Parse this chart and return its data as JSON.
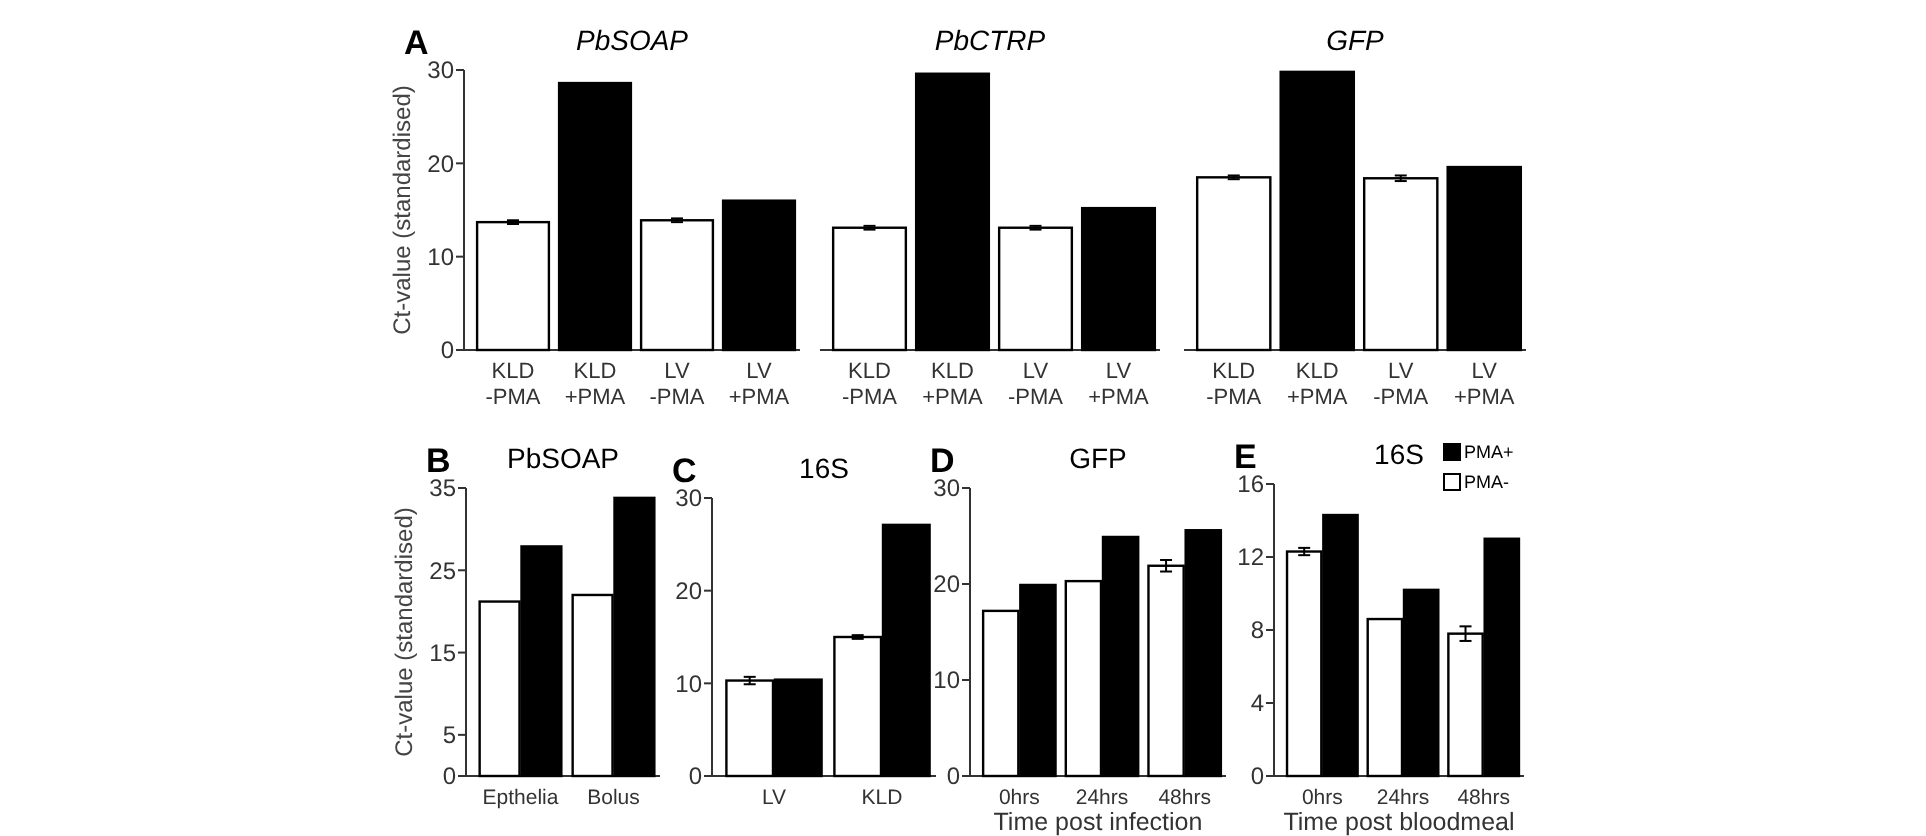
{
  "chart_data": [
    {
      "type": "bar",
      "title": "PbSOAP",
      "ylabel": "Ct-value (standardised)",
      "annotations": [
        "A"
      ],
      "categories": [
        "KLD -PMA",
        "KLD +PMA",
        "LV -PMA",
        "LV +PMA"
      ],
      "values": [
        13.7,
        28.6,
        13.9,
        16.0
      ],
      "colors": [
        "#ffffff",
        "#000000",
        "#ffffff",
        "#000000"
      ],
      "errors": [
        0.2,
        null,
        0.2,
        null
      ],
      "ylim": [
        0,
        30
      ],
      "yticks": [
        0,
        10,
        20,
        30
      ]
    },
    {
      "type": "bar",
      "title": "PbCTRP",
      "categories": [
        "KLD -PMA",
        "KLD +PMA",
        "LV -PMA",
        "LV +PMA"
      ],
      "values": [
        13.1,
        29.6,
        13.1,
        15.2
      ],
      "colors": [
        "#ffffff",
        "#000000",
        "#ffffff",
        "#000000"
      ],
      "errors": [
        0.2,
        null,
        0.2,
        null
      ],
      "ylim": [
        0,
        30
      ],
      "tick_labels": "x"
    },
    {
      "type": "bar",
      "title": "GFP",
      "categories": [
        "KLD -PMA",
        "KLD +PMA",
        "LV -PMA",
        "LV +PMA"
      ],
      "values": [
        18.5,
        29.8,
        18.4,
        19.6
      ],
      "colors": [
        "#ffffff",
        "#000000",
        "#ffffff",
        "#000000"
      ],
      "errors": [
        0.2,
        null,
        0.3,
        null
      ],
      "ylim": [
        0,
        30
      ],
      "tick_labels": "x"
    },
    {
      "type": "bar",
      "title": "PbSOAP",
      "ylabel": "Ct-value (standardised)",
      "annotations": [
        "B"
      ],
      "categories": [
        "Epthelia",
        "Bolus"
      ],
      "ylim": [
        0,
        35
      ],
      "yticks": [
        0,
        5,
        15,
        25,
        35
      ],
      "series": [
        {
          "color": "#ffffff",
          "values": [
            21.2,
            22.0
          ]
        },
        {
          "color": "#000000",
          "values": [
            27.9,
            33.8
          ]
        }
      ]
    },
    {
      "type": "bar",
      "title": "16S",
      "annotations": [
        "C"
      ],
      "categories": [
        "LV",
        "KLD"
      ],
      "ylim": [
        0,
        30
      ],
      "yticks": [
        0,
        10,
        20,
        30
      ],
      "series": [
        {
          "color": "#ffffff",
          "values": [
            10.3,
            15.0
          ],
          "errors": [
            0.4,
            0.2
          ]
        },
        {
          "color": "#000000",
          "values": [
            10.4,
            27.1
          ]
        }
      ]
    },
    {
      "type": "bar",
      "title": "GFP",
      "xlabel": "Time post infection",
      "annotations": [
        "D"
      ],
      "categories": [
        "0hrs",
        "24hrs",
        "48hrs"
      ],
      "ylim": [
        0,
        30
      ],
      "yticks": [
        0,
        10,
        20,
        30
      ],
      "series": [
        {
          "color": "#ffffff",
          "values": [
            17.2,
            20.3,
            21.9
          ],
          "errors": [
            null,
            null,
            0.6
          ]
        },
        {
          "color": "#000000",
          "values": [
            19.9,
            24.9,
            25.6
          ]
        }
      ]
    },
    {
      "type": "bar",
      "title": "16S",
      "xlabel": "Time post bloodmeal",
      "annotations": [
        "E"
      ],
      "categories": [
        "0hrs",
        "24hrs",
        "48hrs"
      ],
      "ylim": [
        0,
        16
      ],
      "yticks": [
        0,
        4,
        8,
        12,
        16
      ],
      "legend": "top right",
      "series": [
        {
          "name": "PMA-",
          "color": "#ffffff",
          "values": [
            12.3,
            8.6,
            7.8
          ],
          "errors": [
            0.2,
            null,
            0.4
          ]
        },
        {
          "name": "PMA+",
          "color": "#000000",
          "values": [
            14.3,
            10.2,
            13.0
          ]
        }
      ]
    }
  ]
}
